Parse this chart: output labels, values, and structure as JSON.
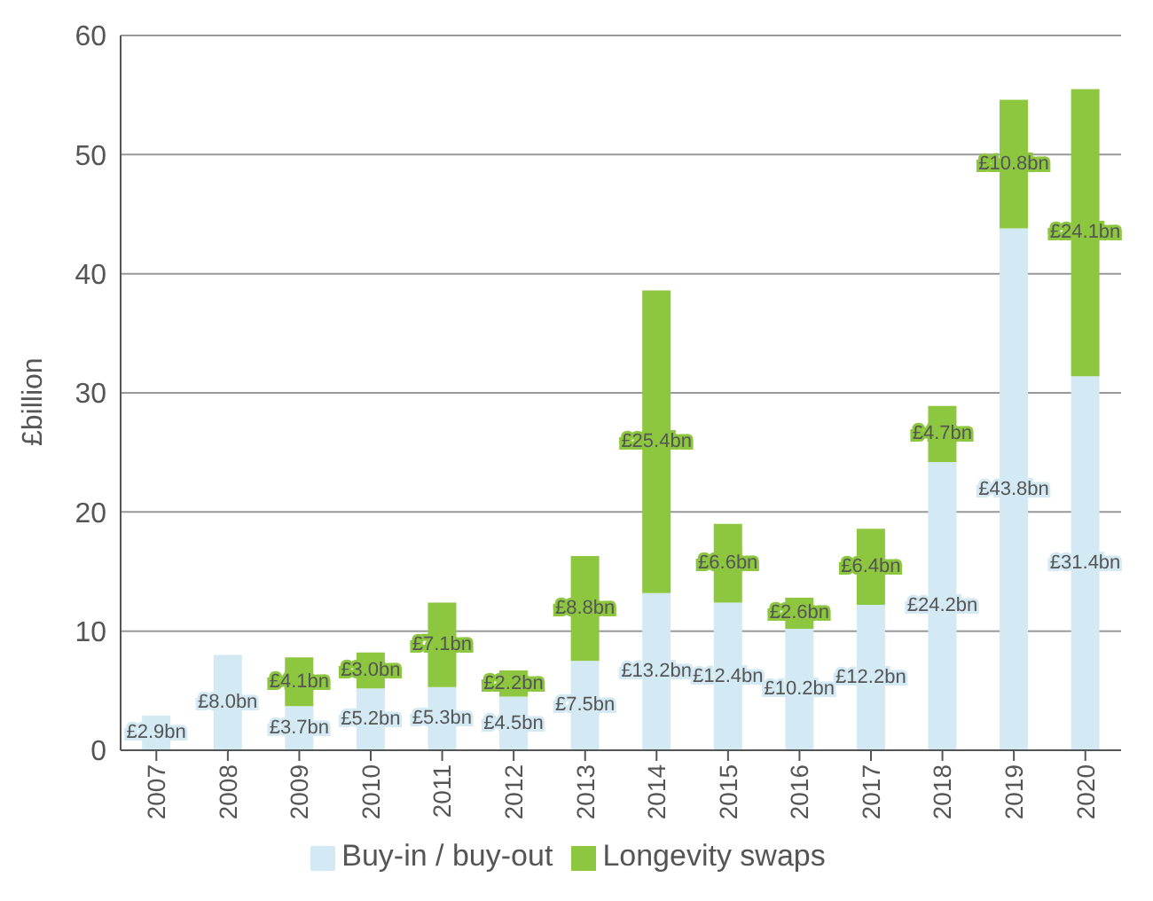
{
  "chart_data": {
    "type": "bar",
    "stacked": true,
    "ylabel": "£billion",
    "categories": [
      "2007",
      "2008",
      "2009",
      "2010",
      "2011",
      "2012",
      "2013",
      "2014",
      "2015",
      "2016",
      "2017",
      "2018",
      "2019",
      "2020"
    ],
    "series": [
      {
        "name": "Buy-in / buy-out",
        "color": "#d3e9f4",
        "values": [
          2.9,
          8.0,
          3.7,
          5.2,
          5.3,
          4.5,
          7.5,
          13.2,
          12.4,
          10.2,
          12.2,
          24.2,
          43.8,
          31.4
        ],
        "value_labels": [
          "£2.9bn",
          "£8.0bn",
          "£3.7bn",
          "£5.2bn",
          "£5.3bn",
          "£4.5bn",
          "£7.5bn",
          "£13.2bn",
          "£12.4bn",
          "£10.2bn",
          "£12.2bn",
          "£24.2bn",
          "£43.8bn",
          "£31.4bn"
        ]
      },
      {
        "name": "Longevity swaps",
        "color": "#8dc63f",
        "values": [
          null,
          null,
          4.1,
          3.0,
          7.1,
          2.2,
          8.8,
          25.4,
          6.6,
          2.6,
          6.4,
          4.7,
          10.8,
          24.1
        ],
        "value_labels": [
          null,
          null,
          "£4.1bn",
          "£3.0bn",
          "£7.1bn",
          "£2.2bn",
          "£8.8bn",
          "£25.4bn",
          "£6.6bn",
          "£2.6bn",
          "£6.4bn",
          "£4.7bn",
          "£10.8bn",
          "£24.1bn"
        ]
      }
    ],
    "ylim": [
      0,
      60
    ],
    "yticks": [
      0,
      10,
      20,
      30,
      40,
      50,
      60
    ],
    "grid": "y",
    "legend": "bottom"
  }
}
